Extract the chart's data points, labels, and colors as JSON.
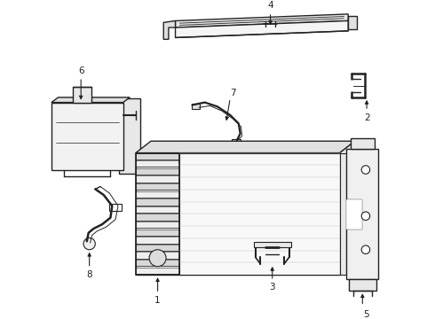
{
  "background_color": "#ffffff",
  "line_color": "#222222",
  "lw": 1.0,
  "fig_width": 4.9,
  "fig_height": 3.6,
  "dpi": 100
}
